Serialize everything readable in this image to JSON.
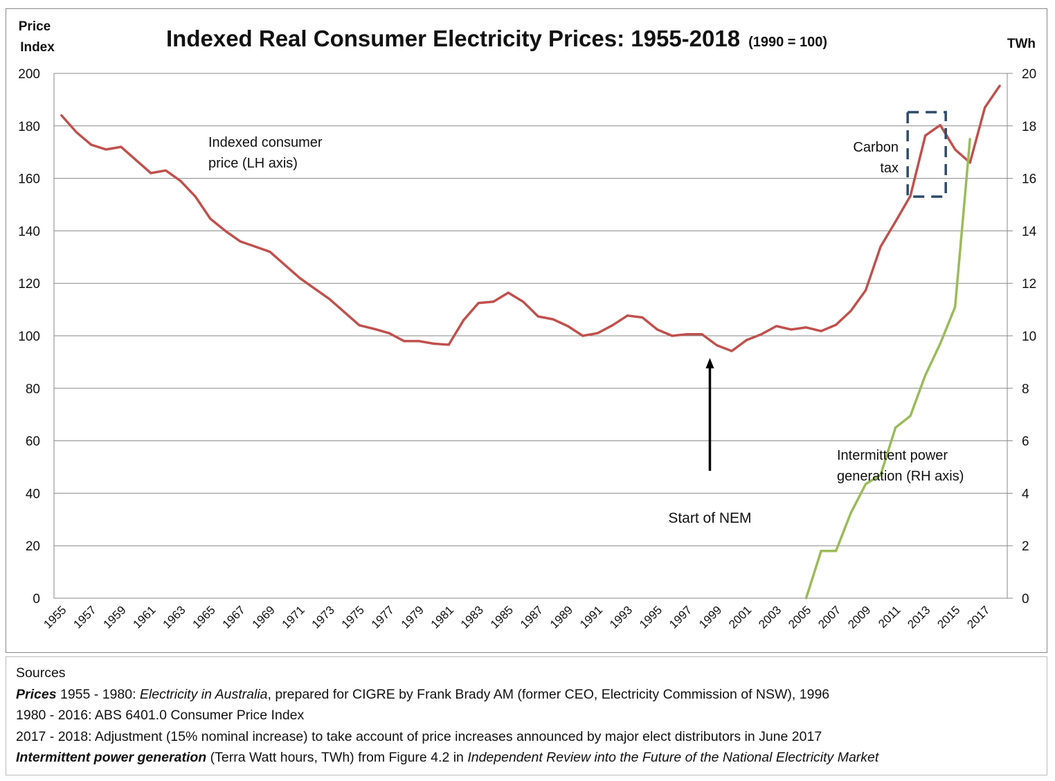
{
  "chart_data": {
    "type": "line",
    "title": "Indexed Real Consumer Electricity Prices: 1955-2018",
    "subtitle": "(1990 = 100)",
    "ylabel_left": "Price Index",
    "ylabel_right": "TWh",
    "xlabel": "",
    "ylim_left": [
      0,
      200
    ],
    "ylim_right": [
      0,
      20
    ],
    "yticks_left": [
      0,
      20,
      40,
      60,
      80,
      100,
      120,
      140,
      160,
      180,
      200
    ],
    "yticks_right": [
      0,
      2,
      4,
      6,
      8,
      10,
      12,
      14,
      16,
      18,
      20
    ],
    "grid": true,
    "legend": "none",
    "x": [
      1955,
      1956,
      1957,
      1958,
      1959,
      1960,
      1961,
      1962,
      1963,
      1964,
      1965,
      1966,
      1967,
      1968,
      1969,
      1970,
      1971,
      1972,
      1973,
      1974,
      1975,
      1976,
      1977,
      1978,
      1979,
      1980,
      1981,
      1982,
      1983,
      1984,
      1985,
      1986,
      1987,
      1988,
      1989,
      1990,
      1991,
      1992,
      1993,
      1994,
      1995,
      1996,
      1997,
      1998,
      1999,
      2000,
      2001,
      2002,
      2003,
      2004,
      2005,
      2006,
      2007,
      2008,
      2009,
      2010,
      2011,
      2012,
      2013,
      2014,
      2015,
      2016,
      2017,
      2018
    ],
    "xtick_labels": [
      "1955",
      "1957",
      "1959",
      "1961",
      "1963",
      "1965",
      "1967",
      "1969",
      "1971",
      "1973",
      "1975",
      "1977",
      "1979",
      "1981",
      "1983",
      "1985",
      "1987",
      "1989",
      "1991",
      "1993",
      "1995",
      "1997",
      "1999",
      "2001",
      "2003",
      "2005",
      "2007",
      "2009",
      "2011",
      "2013",
      "2015",
      "2017"
    ],
    "series": [
      {
        "axis": "left",
        "color": "#c0504d",
        "values": [
          184,
          177.6,
          172.8,
          171,
          172,
          167,
          162,
          163,
          159,
          153,
          144.6,
          140,
          136,
          134,
          132,
          127,
          122,
          118,
          114,
          109,
          104,
          102.6,
          101,
          98,
          98,
          97,
          96.6,
          106,
          112.5,
          113,
          116.4,
          113,
          107.4,
          106.3,
          103.7,
          100,
          101,
          104,
          107.7,
          107,
          102.4,
          100,
          100.6,
          100.6,
          96.4,
          94.2,
          98.4,
          100.6,
          103.7,
          102.4,
          103.2,
          101.8,
          104.2,
          109.5,
          117.4,
          134,
          143.5,
          153.3,
          176.3,
          180.3,
          171,
          166,
          187,
          195.3
        ]
      },
      {
        "axis": "right",
        "color": "#9bbb59",
        "values": [
          null,
          null,
          null,
          null,
          null,
          null,
          null,
          null,
          null,
          null,
          null,
          null,
          null,
          null,
          null,
          null,
          null,
          null,
          null,
          null,
          null,
          null,
          null,
          null,
          null,
          null,
          null,
          null,
          null,
          null,
          null,
          null,
          null,
          null,
          null,
          null,
          null,
          null,
          null,
          null,
          null,
          null,
          null,
          null,
          null,
          null,
          null,
          null,
          null,
          null,
          0,
          1.8,
          1.8,
          3.25,
          4.35,
          4.7,
          6.5,
          6.95,
          8.5,
          9.7,
          11.1,
          17.5,
          null,
          null
        ]
      }
    ],
    "annotations": {
      "price_label": [
        "Indexed consumer",
        "price (LH axis)"
      ],
      "intermittent_label": [
        "Intermittent power",
        "generation (RH axis)"
      ],
      "carbon_label": [
        "Carbon",
        "tax"
      ],
      "nem_label": "Start of NEM",
      "nem_year": 1999,
      "carbon_box_years": [
        2012,
        2014
      ]
    }
  },
  "sources": {
    "heading": "Sources",
    "line1_bold": "Prices",
    "line1_a": " 1955 - 1980: ",
    "line1_italic": "Electricity in Australia",
    "line1_b": ", prepared for CIGRE by Frank Brady AM (former CEO, Electricity Commission of NSW), 1996",
    "line2": "1980 - 2016: ABS 6401.0 Consumer Price Index",
    "line3": "2017 - 2018: Adjustment (15% nominal increase) to take account of price increases announced by major elect distributors in June 2017",
    "line4_bold": "Intermittent power generation",
    "line4_a": " (Terra Watt hours, TWh) from Figure 4.2 in ",
    "line4_italic": "Independent Review into the Future of the National Electricity Market"
  }
}
